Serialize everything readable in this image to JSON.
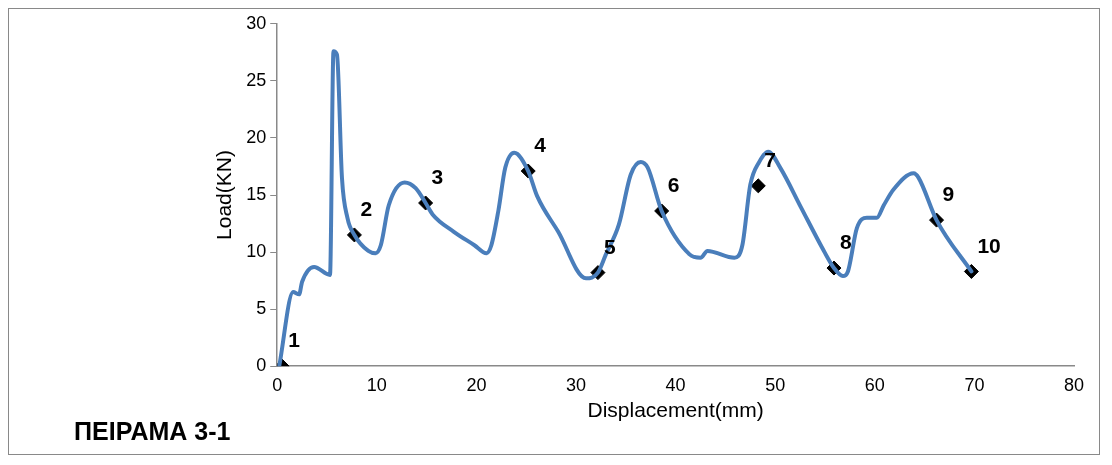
{
  "chart_data": {
    "type": "line",
    "xlabel": "Displacement(mm)",
    "ylabel": "Load(KN)",
    "annotations": [
      "ΠΕΙΡΑΜΑ 3-1",
      {
        "text": "1",
        "x": 0.5,
        "y": 0
      },
      {
        "text": "2",
        "x": 7.75,
        "y": 11.5
      },
      {
        "text": "3",
        "x": 14.9,
        "y": 14.3
      },
      {
        "text": "4",
        "x": 25.2,
        "y": 17.1
      },
      {
        "text": "5",
        "x": 32.2,
        "y": 8.2
      },
      {
        "text": "6",
        "x": 38.6,
        "y": 13.6
      },
      {
        "text": "7",
        "x": 48.3,
        "y": 15.8
      },
      {
        "text": "8",
        "x": 55.9,
        "y": 8.6
      },
      {
        "text": "9",
        "x": 66.2,
        "y": 12.8
      },
      {
        "text": "10",
        "x": 69.7,
        "y": 8.3
      }
    ],
    "xlim": [
      0,
      80
    ],
    "xticks": [
      0,
      10,
      20,
      30,
      40,
      50,
      60,
      70,
      80
    ],
    "ylim": [
      0,
      30
    ],
    "yticks": [
      0,
      5,
      10,
      15,
      20,
      25,
      30
    ],
    "grid": false,
    "legend": false,
    "series": [
      {
        "type": "line",
        "color": "#4a7ebb",
        "marker": "none",
        "line_style": "solid",
        "x": [
          0.2,
          1.6,
          2.2,
          2.5,
          3.7,
          5.3,
          5.65,
          6.0,
          6.5,
          7.05,
          7.75,
          9.15,
          9.85,
          10.4,
          11.2,
          12.8,
          13.9,
          14.9,
          15.6,
          17.7,
          19.8,
          21.0,
          21.5,
          22.2,
          22.9,
          23.8,
          25.2,
          26.1,
          28.2,
          31.0,
          32.2,
          33.0,
          34.3,
          35.5,
          36.5,
          37.2,
          38.6,
          41.4,
          42.5,
          43.2,
          45.9,
          46.7,
          47.5,
          48.4,
          49.3,
          50.5,
          52.6,
          54.7,
          55.9,
          56.8,
          57.3,
          58.2,
          59.2,
          60.2,
          60.9,
          61.9,
          63.9,
          64.4,
          66.2,
          69.7
        ],
        "values": [
          0,
          6.5,
          6.3,
          7.4,
          8.7,
          8.0,
          27.6,
          27.3,
          16.5,
          13.0,
          11.5,
          10.1,
          9.9,
          10.6,
          14.1,
          16.1,
          15.6,
          14.3,
          13.3,
          11.8,
          10.6,
          9.9,
          10.6,
          13.6,
          17.4,
          18.7,
          17.1,
          14.9,
          11.8,
          7.7,
          8.2,
          9.8,
          12.4,
          16.8,
          17.9,
          17.4,
          13.6,
          9.8,
          9.5,
          10.1,
          9.5,
          10.6,
          15.9,
          17.9,
          18.8,
          17.4,
          13.9,
          10.4,
          8.6,
          7.9,
          8.3,
          12.1,
          13.0,
          13.0,
          14.1,
          15.5,
          16.9,
          16.5,
          12.8,
          8.3
        ]
      },
      {
        "type": "scatter",
        "color": "#000000",
        "marker": "diamond",
        "x": [
          0.5,
          7.75,
          14.9,
          25.2,
          32.2,
          38.6,
          48.3,
          55.9,
          66.2,
          69.7
        ],
        "values": [
          0,
          11.5,
          14.3,
          17.1,
          8.2,
          13.6,
          15.8,
          8.6,
          12.8,
          8.3
        ]
      }
    ]
  }
}
